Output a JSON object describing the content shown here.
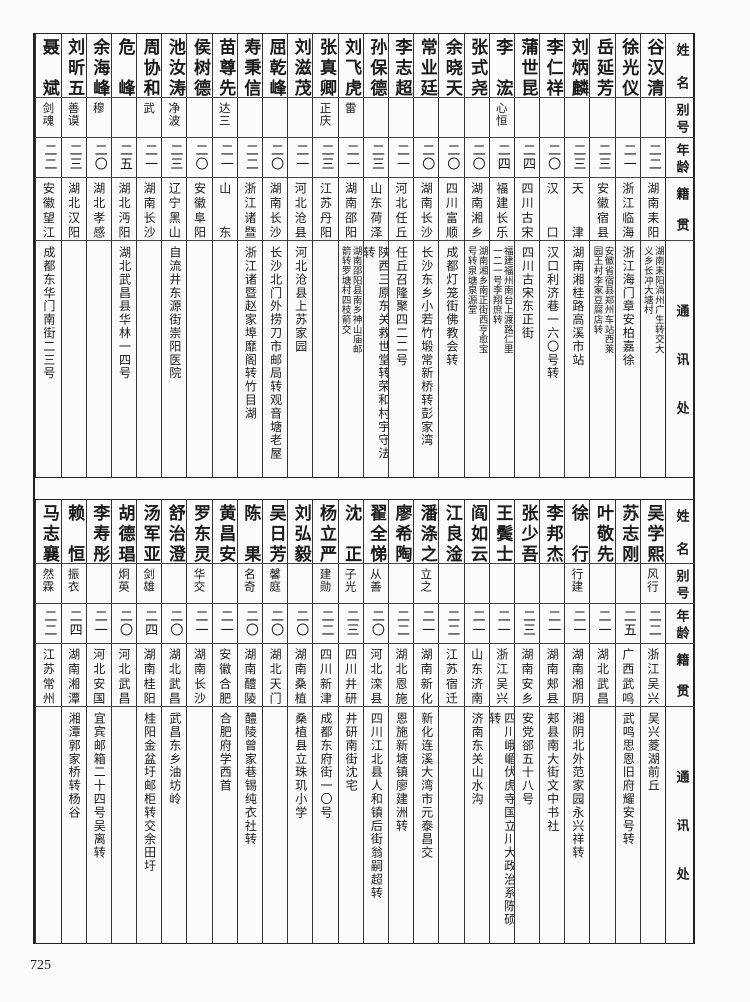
{
  "headers": {
    "name": "姓名",
    "alias": "别号",
    "age": "年龄",
    "origin": "籍贯",
    "address": "通讯处"
  },
  "page_number": "725",
  "top": [
    {
      "name": "谷汉清",
      "alias": "",
      "age": "二二",
      "origin": "湖南耒阳",
      "address": "湖南耒阳淌州广生转交大义乡长冲大塘村"
    },
    {
      "name": "徐光仪",
      "alias": "",
      "age": "二一",
      "origin": "浙江临海",
      "address": "浙江海门章安柏嘉徐"
    },
    {
      "name": "岳延芳",
      "alias": "",
      "age": "二三",
      "origin": "安徽宿县",
      "address": "安徽省宿县郑州车站西莱园王村李家豆腐店转"
    },
    {
      "name": "刘炳麟",
      "alias": "",
      "age": "二三",
      "origin": "天津",
      "address": "湖南湘桂路高溪市站"
    },
    {
      "name": "李仁祥",
      "alias": "",
      "age": "二〇",
      "origin": "汉口",
      "address": "汉口利济巷一六〇号转"
    },
    {
      "name": "蒲世昆",
      "alias": "",
      "age": "二四",
      "origin": "四川古宋",
      "address": "四川古宋东正街"
    },
    {
      "name": "李浤",
      "alias": "心恒",
      "age": "二四",
      "origin": "福建长乐",
      "address": "福建福州南台上渡路仁里一二一号李翔庶转"
    },
    {
      "name": "张式尧",
      "alias": "",
      "age": "二〇",
      "origin": "湖南湘乡",
      "address": "湖南湘乡南正街西亨愈宝号转泉塘泉源堂"
    },
    {
      "name": "余晓天",
      "alias": "",
      "age": "二〇",
      "origin": "四川富顺",
      "address": "成都灯笼街佛教会转"
    },
    {
      "name": "常业廷",
      "alias": "",
      "age": "二〇",
      "origin": "湖南长沙",
      "address": "长沙东乡小若竹塅常新桥转彭家湾"
    },
    {
      "name": "李志超",
      "alias": "",
      "age": "二一",
      "origin": "河北任丘",
      "address": "任丘召隆聚四二二号"
    },
    {
      "name": "孙保德",
      "alias": "",
      "age": "二三",
      "origin": "山东荷泽",
      "address": "陕西三原东关救世堂转荣和村宇守法转"
    },
    {
      "name": "刘飞虎",
      "alias": "雷",
      "age": "二一",
      "origin": "湖南邵阳",
      "address": "湖南邵阳县南乡神山庙邮箭转罗塘村四枝箭交"
    },
    {
      "name": "张真卿",
      "alias": "正庆",
      "age": "二三",
      "origin": "江苏丹阳",
      "address": ""
    },
    {
      "name": "刘滋茂",
      "alias": "",
      "age": "二一",
      "origin": "河北沧县",
      "address": "河北沧县上苏家园"
    },
    {
      "name": "屈乾峰",
      "alias": "",
      "age": "二〇",
      "origin": "湖南长沙",
      "address": "长沙北门外捞刀市邮局转观音塘老屋"
    },
    {
      "name": "寿秉信",
      "alias": "",
      "age": "二二",
      "origin": "浙江诸暨",
      "address": "浙江诸暨赵家埠靡阁转竹目湖"
    },
    {
      "name": "苗尊先",
      "alias": "达三",
      "age": "二一",
      "origin": "山东",
      "address": ""
    },
    {
      "name": "侯树德",
      "alias": "",
      "age": "二〇",
      "origin": "安徽阜阳",
      "address": ""
    },
    {
      "name": "池汝涛",
      "alias": "净波",
      "age": "二三",
      "origin": "辽宁黑山",
      "address": "自流井东源街崇阳医院"
    },
    {
      "name": "周协和",
      "alias": "武",
      "age": "二一",
      "origin": "湖南长沙",
      "address": ""
    },
    {
      "name": "危峰",
      "alias": "",
      "age": "二五",
      "origin": "湖北沔阳",
      "address": "湖北武昌县华林一四号"
    },
    {
      "name": "余海峰",
      "alias": "穆",
      "age": "二〇",
      "origin": "湖北孝感",
      "address": ""
    },
    {
      "name": "刘昕五",
      "alias": "善谟",
      "age": "二三",
      "origin": "湖北汉阳",
      "address": ""
    },
    {
      "name": "聂斌",
      "alias": "剑魂",
      "age": "二二",
      "origin": "安徽望江",
      "address": "成都东华门南街二三号"
    }
  ],
  "bottom": [
    {
      "name": "吴学熙",
      "alias": "风行",
      "age": "二二",
      "origin": "浙江吴兴",
      "address": "吴兴菱湖前丘"
    },
    {
      "name": "苏志刚",
      "alias": "",
      "age": "二五",
      "origin": "广西武鸣",
      "address": "武鸣思恩旧府耀安号转"
    },
    {
      "name": "叶敬先",
      "alias": "",
      "age": "二一",
      "origin": "湖北武昌",
      "address": ""
    },
    {
      "name": "徐行",
      "alias": "行建",
      "age": "二一",
      "origin": "湖南湘阴",
      "address": "湘阴北外范家园永兴祥转"
    },
    {
      "name": "李邦杰",
      "alias": "",
      "age": "二一",
      "origin": "湖南郏县",
      "address": "郏县南大街文中书社"
    },
    {
      "name": "张少吾",
      "alias": "",
      "age": "二三",
      "origin": "湖南安乡",
      "address": "安党郤五十八号"
    },
    {
      "name": "王鬓士",
      "alias": "",
      "age": "二一",
      "origin": "浙江吴兴",
      "address": "四川峨嵋伏虎寺国立川大政治系陈硕转"
    },
    {
      "name": "阎如云",
      "alias": "",
      "age": "二一",
      "origin": "山东济南",
      "address": "济南东关山水沟"
    },
    {
      "name": "江良淦",
      "alias": "",
      "age": "二二",
      "origin": "江苏宿迁",
      "address": ""
    },
    {
      "name": "潘涤之",
      "alias": "立之",
      "age": "二一",
      "origin": "湖南新化",
      "address": "新化连溪大湾市元泰昌交"
    },
    {
      "name": "廖希陶",
      "alias": "",
      "age": "二二",
      "origin": "湖北恩施",
      "address": "恩施新塘镇廖建洲转"
    },
    {
      "name": "翟全悌",
      "alias": "从善",
      "age": "二〇",
      "origin": "河北滦县",
      "address": "四川江北县人和镇后街翁嗣超转"
    },
    {
      "name": "沈正",
      "alias": "子光",
      "age": "二三",
      "origin": "四川井研",
      "address": "井研南街沈宅"
    },
    {
      "name": "杨立严",
      "alias": "建勋",
      "age": "二二",
      "origin": "四川新津",
      "address": "成都东府街一〇号"
    },
    {
      "name": "刘弘毅",
      "alias": "",
      "age": "二〇",
      "origin": "湖南桑植",
      "address": "桑植县立珠玑小学"
    },
    {
      "name": "吴日芳",
      "alias": "馨庭",
      "age": "二〇",
      "origin": "湖北天门",
      "address": ""
    },
    {
      "name": "陈果",
      "alias": "名奇",
      "age": "二〇",
      "origin": "湖南醴陵",
      "address": "醴陵曾家巷锡纯衣社转"
    },
    {
      "name": "黄昌安",
      "alias": "",
      "age": "二一",
      "origin": "安徽合肥",
      "address": "合肥府学西首"
    },
    {
      "name": "罗东灵",
      "alias": "华交",
      "age": "二一",
      "origin": "湖南长沙",
      "address": ""
    },
    {
      "name": "舒治澄",
      "alias": "",
      "age": "二〇",
      "origin": "湖北武昌",
      "address": "武昌东乡油坊岭"
    },
    {
      "name": "汤军亚",
      "alias": "剑雄",
      "age": "二四",
      "origin": "湖南桂阳",
      "address": "桂阳金盆圩邮柜转交余田圩"
    },
    {
      "name": "胡德琩",
      "alias": "炯英",
      "age": "二〇",
      "origin": "河北武昌",
      "address": ""
    },
    {
      "name": "李寿彤",
      "alias": "",
      "age": "二一",
      "origin": "河北安国",
      "address": "宜宾邮箱二十四号吴离转"
    },
    {
      "name": "赖恒",
      "alias": "振衣",
      "age": "二四",
      "origin": "湖南湘潭",
      "address": "湘潭郭家桥转杨谷"
    },
    {
      "name": "马志襄",
      "alias": "然霖",
      "age": "二二",
      "origin": "江苏常州",
      "address": ""
    }
  ]
}
